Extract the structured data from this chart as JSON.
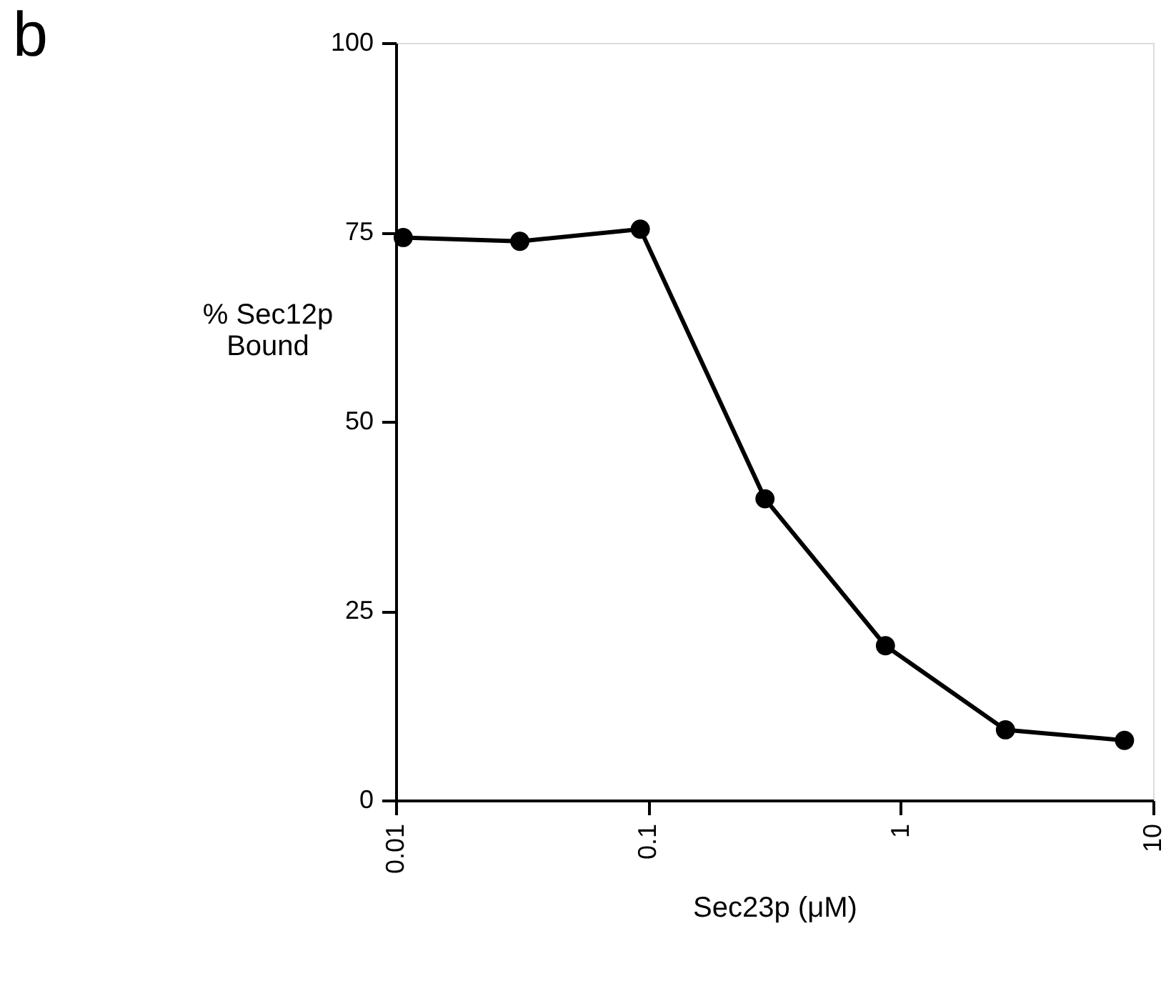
{
  "chart_data": {
    "type": "line",
    "xlabel": "Sec23p (μM)",
    "ylabel": "% Sec12p\nBound",
    "annotations": [
      "b"
    ],
    "x": [
      0.0107,
      0.031,
      0.093,
      0.29,
      0.87,
      2.6,
      7.7
    ],
    "series": [
      {
        "color": "#000000",
        "values": [
          74.3,
          73.8,
          75.4,
          39.8,
          20.4,
          9.3,
          7.9
        ]
      }
    ],
    "xlim": [
      0.01,
      10
    ],
    "xticks": [
      0.01,
      0.1,
      1,
      10
    ],
    "ylim": [
      0,
      100
    ],
    "yticks": [
      0,
      25,
      50,
      75,
      100
    ],
    "log": "x",
    "grid": false,
    "marker": "circle",
    "line_style": "solid"
  }
}
